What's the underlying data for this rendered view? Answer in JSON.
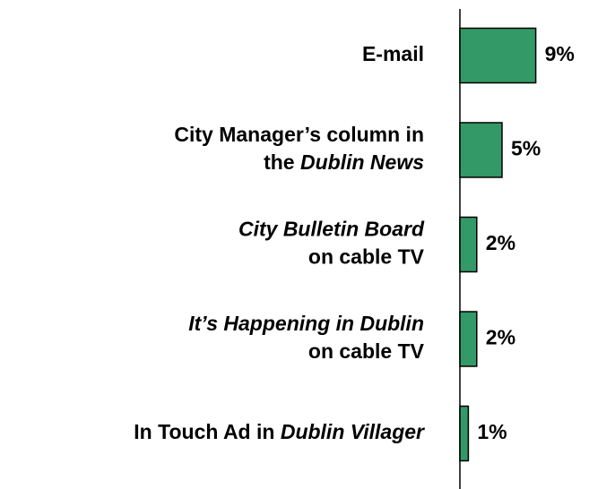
{
  "chart_data": {
    "type": "barh",
    "categories": [
      [
        [
          {
            "text": "E-mail",
            "italic": false
          }
        ]
      ],
      [
        [
          {
            "text": "City Manager’s column in",
            "italic": false
          }
        ],
        [
          {
            "text": "the ",
            "italic": false
          },
          {
            "text": "Dublin News",
            "italic": true
          }
        ]
      ],
      [
        [
          {
            "text": "City Bulletin Board",
            "italic": true
          }
        ],
        [
          {
            "text": "on cable TV",
            "italic": false
          }
        ]
      ],
      [
        [
          {
            "text": "It’s Happening in Dublin",
            "italic": true
          }
        ],
        [
          {
            "text": "on cable TV",
            "italic": false
          }
        ]
      ],
      [
        [
          {
            "text": "In Touch Ad in ",
            "italic": false
          },
          {
            "text": "Dublin Villager",
            "italic": true
          }
        ]
      ]
    ],
    "values": [
      9,
      5,
      2,
      2,
      1
    ],
    "value_labels": [
      "9%",
      "5%",
      "2%",
      "2%",
      "1%"
    ],
    "color": "#339966"
  }
}
